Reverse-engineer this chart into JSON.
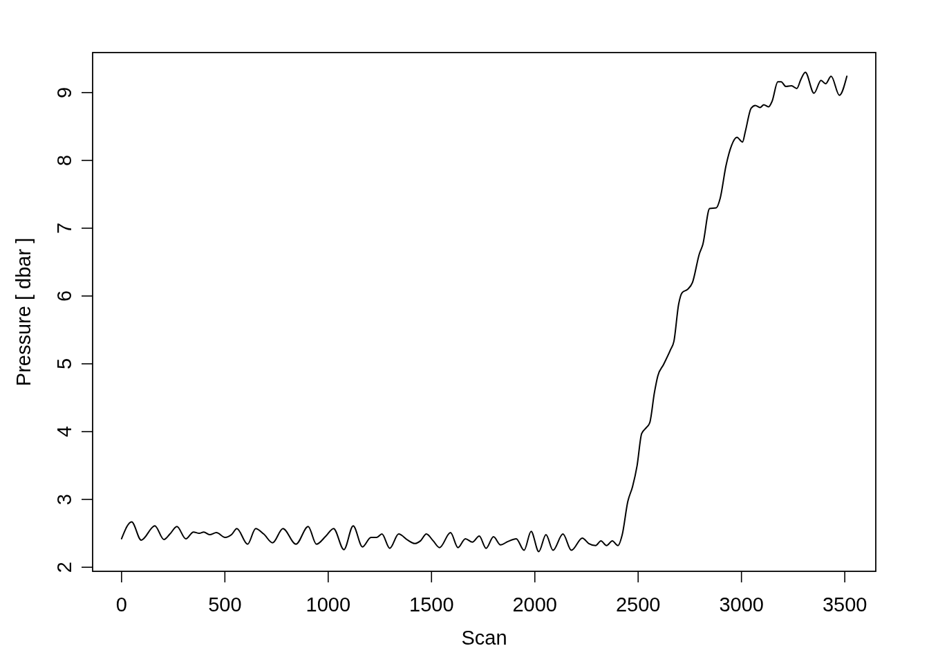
{
  "chart_data": {
    "type": "line",
    "xlabel": "Scan",
    "ylabel": "Pressure [ dbar ]",
    "color": "#000000",
    "x": [
      0,
      49,
      95,
      161,
      205,
      234,
      268,
      311,
      348,
      376,
      398,
      426,
      459,
      501,
      532,
      558,
      610,
      649,
      688,
      731,
      781,
      844,
      903,
      943,
      989,
      1026,
      1076,
      1121,
      1166,
      1207,
      1235,
      1260,
      1298,
      1341,
      1385,
      1419,
      1447,
      1475,
      1508,
      1539,
      1592,
      1628,
      1664,
      1698,
      1731,
      1764,
      1800,
      1834,
      1870,
      1910,
      1948,
      1982,
      2019,
      2054,
      2088,
      2136,
      2177,
      2230,
      2261,
      2294,
      2320,
      2347,
      2375,
      2402,
      2423,
      2450,
      2473,
      2495,
      2517,
      2540,
      2556,
      2579,
      2595,
      2623,
      2657,
      2673,
      2696,
      2713,
      2740,
      2763,
      2796,
      2813,
      2846,
      2878,
      2897,
      2925,
      2952,
      2978,
      3005,
      3019,
      3047,
      3067,
      3090,
      3108,
      3131,
      3148,
      3176,
      3192,
      3215,
      3242,
      3268,
      3287,
      3309,
      3351,
      3385,
      3407,
      3434,
      3474,
      3510
    ],
    "values": [
      2.42,
      2.67,
      2.4,
      2.61,
      2.41,
      2.49,
      2.6,
      2.42,
      2.52,
      2.5,
      2.52,
      2.48,
      2.51,
      2.44,
      2.48,
      2.57,
      2.34,
      2.57,
      2.49,
      2.36,
      2.57,
      2.34,
      2.6,
      2.34,
      2.46,
      2.57,
      2.26,
      2.61,
      2.3,
      2.44,
      2.44,
      2.49,
      2.28,
      2.49,
      2.4,
      2.35,
      2.39,
      2.49,
      2.39,
      2.29,
      2.51,
      2.29,
      2.42,
      2.37,
      2.46,
      2.28,
      2.45,
      2.33,
      2.38,
      2.42,
      2.25,
      2.53,
      2.23,
      2.48,
      2.25,
      2.49,
      2.25,
      2.43,
      2.35,
      2.32,
      2.39,
      2.32,
      2.39,
      2.32,
      2.48,
      2.97,
      3.19,
      3.5,
      3.97,
      4.06,
      4.13,
      4.58,
      4.82,
      4.99,
      5.21,
      5.33,
      5.88,
      6.05,
      6.1,
      6.2,
      6.62,
      6.76,
      7.29,
      7.3,
      7.44,
      7.92,
      8.22,
      8.34,
      8.27,
      8.43,
      8.77,
      8.81,
      8.78,
      8.82,
      8.79,
      8.87,
      9.16,
      9.16,
      9.09,
      9.1,
      9.06,
      9.19,
      9.3,
      8.99,
      9.18,
      9.13,
      9.24,
      8.96,
      9.24
    ],
    "xlim": [
      -140,
      3650
    ],
    "ylim": [
      1.94,
      9.59
    ],
    "xticks": [
      0,
      500,
      1000,
      1500,
      2000,
      2500,
      3000,
      3500
    ],
    "yticks": [
      2,
      3,
      4,
      5,
      6,
      7,
      8,
      9
    ]
  }
}
